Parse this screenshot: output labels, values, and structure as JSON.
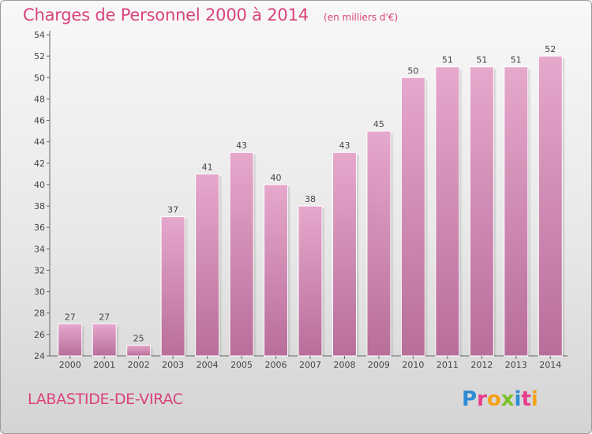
{
  "chart_data": {
    "type": "bar",
    "title": "Charges de Personnel 2000 à 2014",
    "subtitle": "(en milliers d'€)",
    "categories": [
      "2000",
      "2001",
      "2002",
      "2003",
      "2004",
      "2005",
      "2006",
      "2007",
      "2008",
      "2009",
      "2010",
      "2011",
      "2012",
      "2013",
      "2014"
    ],
    "values": [
      27,
      27,
      25,
      37,
      41,
      43,
      40,
      38,
      43,
      45,
      50,
      51,
      51,
      51,
      52
    ],
    "ylim": [
      24,
      54
    ],
    "yticks": [
      24,
      26,
      28,
      30,
      32,
      34,
      36,
      38,
      40,
      42,
      44,
      46,
      48,
      50,
      52,
      54
    ],
    "grid": false,
    "data_labels": true,
    "bar_color": "#d98fb8"
  },
  "commune": "LABASTIDE-DE-VIRAC",
  "logo": {
    "text": "Proxiti",
    "letters": [
      {
        "char": "P",
        "color": "#2e8bd6"
      },
      {
        "char": "r",
        "color": "#e83c8c"
      },
      {
        "char": "o",
        "color": "#f4a21a"
      },
      {
        "char": "x",
        "color": "#7fbf2a"
      },
      {
        "char": "i",
        "color": "#2e8bd6"
      },
      {
        "char": "t",
        "color": "#e83c8c"
      },
      {
        "char": "i",
        "color": "#f4a21a"
      }
    ]
  }
}
